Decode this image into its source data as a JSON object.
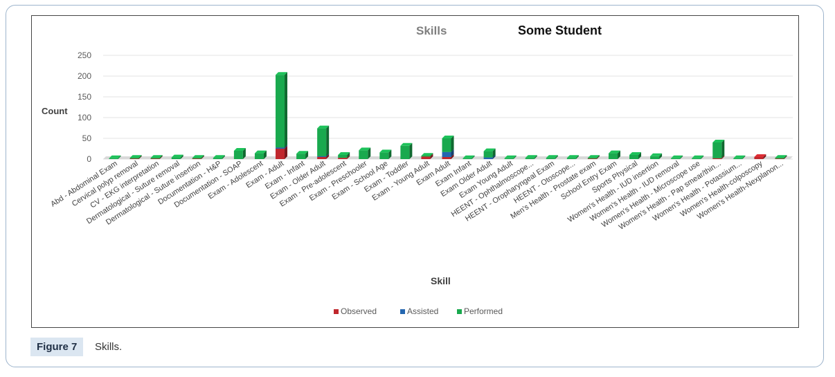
{
  "figure": {
    "label": "Figure 7",
    "caption": "Skills."
  },
  "chart_data": {
    "type": "bar",
    "stacked": true,
    "three_d": true,
    "title": "Skills",
    "subtitle": "Some Student",
    "xlabel": "Skill",
    "ylabel": "Count",
    "ylim": [
      0,
      250
    ],
    "yticks": [
      0,
      50,
      100,
      150,
      200,
      250
    ],
    "grid": true,
    "legend_position": "bottom",
    "categories": [
      "Abd - Abdominal Exam",
      "Cervical polyp removal",
      "CV - EKG interpretation",
      "Dermatological - Suture removal",
      "Dermatological - Suture insertion",
      "Documentation - H&P",
      "Documentation - SOAP",
      "Exam - Adolescent",
      "Exam - Adult",
      "Exam - Infant",
      "Exam - Older Adult",
      "Exam - Pre-adolescent",
      "Exam - Preschooler",
      "Exam - School Age",
      "Exam - Toddler",
      "Exam - Young Adult",
      "Exam Adult",
      "Exam Infant",
      "Exam Older Adult",
      "Exam Young Adult",
      "HEENT - Ophthalmoscope...",
      "HEENT - Oropharyngeal Exam",
      "HEENT - Otoscope...",
      "Men's Health - Prostate exam",
      "School Entry Exam",
      "Sports Physical",
      "Women's Health - IUD insertion",
      "Women's Health - IUD removal",
      "Women's Health - Microscope use",
      "Women's Health - Pap smear/thin...",
      "Women's Health - Potassium...",
      "Women's Health-colposcopy",
      "Women's Health-Nexplanon..."
    ],
    "series": [
      {
        "name": "Observed",
        "color": "#c0272d",
        "values": [
          0,
          1,
          1,
          0,
          1,
          0,
          0,
          0,
          25,
          0,
          5,
          3,
          0,
          0,
          0,
          6,
          5,
          0,
          0,
          0,
          0,
          0,
          0,
          1,
          0,
          0,
          0,
          0,
          0,
          2,
          0,
          5,
          1
        ]
      },
      {
        "name": "Assisted",
        "color": "#2567b0",
        "values": [
          0,
          0,
          0,
          0,
          0,
          0,
          0,
          0,
          3,
          0,
          2,
          0,
          0,
          0,
          0,
          0,
          12,
          0,
          4,
          0,
          0,
          0,
          0,
          0,
          0,
          0,
          0,
          0,
          0,
          0,
          0,
          0,
          0
        ]
      },
      {
        "name": "Performed",
        "color": "#19a94e",
        "values": [
          2,
          1,
          2,
          4,
          2,
          3,
          20,
          14,
          175,
          13,
          67,
          7,
          21,
          16,
          32,
          2,
          33,
          2,
          15,
          2,
          3,
          3,
          3,
          1,
          14,
          10,
          7,
          2,
          2,
          38,
          2,
          0,
          1
        ]
      }
    ]
  }
}
